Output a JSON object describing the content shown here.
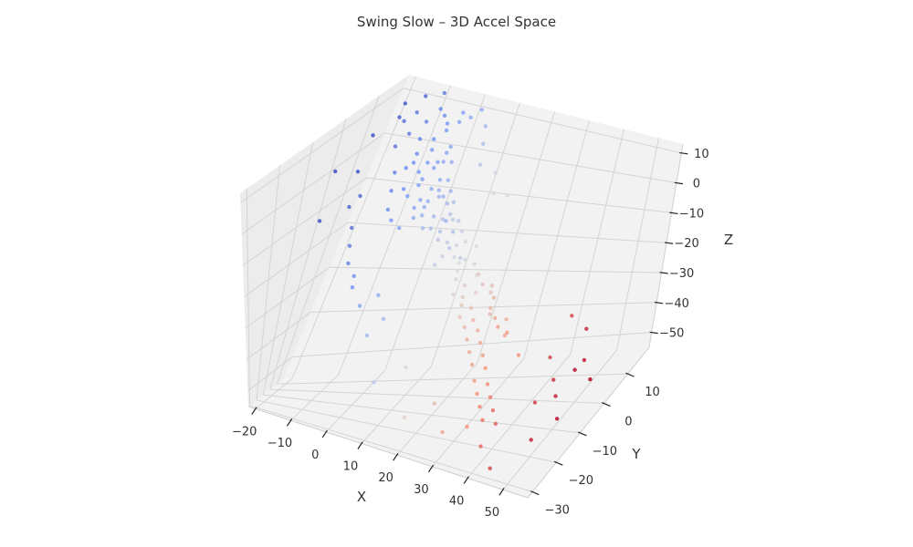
{
  "chart_data": {
    "type": "scatter",
    "projection": "3d",
    "title": "Swing Slow – 3D Accel Space",
    "xlabel": "X",
    "ylabel": "Y",
    "zlabel": "Z",
    "xlim": [
      -22,
      57
    ],
    "ylim": [
      -32,
      19
    ],
    "zlim": [
      -55,
      13
    ],
    "x_ticks": [
      -20,
      -10,
      0,
      10,
      20,
      30,
      40,
      50
    ],
    "y_ticks": [
      -30,
      -20,
      -10,
      0,
      10
    ],
    "z_ticks": [
      -50,
      -40,
      -30,
      -20,
      -10,
      0,
      10
    ],
    "x_tick_labels": [
      "−20",
      "−10",
      "0",
      "10",
      "20",
      "30",
      "40",
      "50"
    ],
    "y_tick_labels": [
      "−30",
      "−20",
      "−10",
      "0",
      "10"
    ],
    "z_tick_labels": [
      "−50",
      "−40",
      "−30",
      "−20",
      "−10",
      "0",
      "10"
    ],
    "grid": true,
    "colormap": "coolwarm",
    "color_by": "x",
    "pane_color": "#f2f2f2",
    "grid_color": "#d4d4d4",
    "points": [
      [
        -4,
        10,
        6
      ],
      [
        -2,
        11,
        8
      ],
      [
        0,
        12,
        10
      ],
      [
        -6,
        8,
        3
      ],
      [
        2,
        13,
        11
      ],
      [
        -3,
        9,
        4
      ],
      [
        1,
        10,
        5
      ],
      [
        -5,
        6,
        2
      ],
      [
        0,
        7,
        1
      ],
      [
        3,
        9,
        2
      ],
      [
        -1,
        5,
        -1
      ],
      [
        4,
        8,
        -2
      ],
      [
        -8,
        4,
        0
      ],
      [
        2,
        5,
        -3
      ],
      [
        -10,
        9,
        12
      ],
      [
        -9,
        7,
        8
      ],
      [
        -11,
        6,
        5
      ],
      [
        -7,
        3,
        -4
      ],
      [
        -12,
        8,
        10
      ],
      [
        -6,
        12,
        12
      ],
      [
        1,
        3,
        -5
      ],
      [
        3,
        2,
        -6
      ],
      [
        5,
        4,
        -4
      ],
      [
        6,
        2,
        -8
      ],
      [
        8,
        3,
        -9
      ],
      [
        4,
        0,
        -7
      ],
      [
        7,
        0,
        -10
      ],
      [
        9,
        1,
        -11
      ],
      [
        10,
        -1,
        -12
      ],
      [
        6,
        -2,
        -9
      ],
      [
        2,
        0,
        -8
      ],
      [
        11,
        2,
        -8
      ],
      [
        12,
        0,
        -13
      ],
      [
        0,
        -2,
        -10
      ],
      [
        -3,
        -1,
        -9
      ],
      [
        -5,
        0,
        -7
      ],
      [
        14,
        1,
        -14
      ],
      [
        13,
        -3,
        -15
      ],
      [
        15,
        -1,
        -16
      ],
      [
        16,
        0,
        -18
      ],
      [
        12,
        -4,
        -17
      ],
      [
        17,
        -2,
        -19
      ],
      [
        18,
        -4,
        -20
      ],
      [
        20,
        -3,
        -22
      ],
      [
        19,
        -6,
        -23
      ],
      [
        21,
        -5,
        -24
      ],
      [
        22,
        -7,
        -25
      ],
      [
        24,
        -6,
        -26
      ],
      [
        26,
        -8,
        -28
      ],
      [
        23,
        -9,
        -27
      ],
      [
        25,
        -10,
        -29
      ],
      [
        28,
        -9,
        -30
      ],
      [
        27,
        -12,
        -31
      ],
      [
        30,
        -11,
        -32
      ],
      [
        29,
        -14,
        -33
      ],
      [
        32,
        -13,
        -34
      ],
      [
        31,
        -16,
        -35
      ],
      [
        34,
        -15,
        -36
      ],
      [
        33,
        -18,
        -38
      ],
      [
        36,
        -17,
        -39
      ],
      [
        35,
        -20,
        -40
      ],
      [
        38,
        -19,
        -41
      ],
      [
        37,
        -22,
        -42
      ],
      [
        40,
        -21,
        -43
      ],
      [
        39,
        -24,
        -44
      ],
      [
        42,
        -23,
        -45
      ],
      [
        15,
        5,
        -20
      ],
      [
        18,
        7,
        -25
      ],
      [
        10,
        6,
        -18
      ],
      [
        20,
        4,
        -28
      ],
      [
        25,
        3,
        -33
      ],
      [
        30,
        2,
        -38
      ],
      [
        35,
        0,
        -42
      ],
      [
        22,
        8,
        -30
      ],
      [
        28,
        6,
        -36
      ],
      [
        12,
        9,
        -22
      ],
      [
        8,
        10,
        -16
      ],
      [
        5,
        11,
        -14
      ],
      [
        45,
        -5,
        -38
      ],
      [
        48,
        -8,
        -42
      ],
      [
        50,
        -10,
        -45
      ],
      [
        52,
        -6,
        -40
      ],
      [
        46,
        -12,
        -46
      ],
      [
        53,
        -14,
        -48
      ],
      [
        49,
        3,
        -35
      ],
      [
        51,
        0,
        -42
      ],
      [
        44,
        5,
        -33
      ],
      [
        54,
        -2,
        -46
      ],
      [
        5,
        -20,
        -30
      ],
      [
        10,
        -25,
        -40
      ],
      [
        15,
        -18,
        -38
      ],
      [
        20,
        -28,
        -46
      ],
      [
        25,
        -22,
        -44
      ],
      [
        30,
        -27,
        -48
      ],
      [
        35,
        -24,
        -47
      ],
      [
        40,
        -26,
        -50
      ],
      [
        45,
        -30,
        -52
      ],
      [
        50,
        -20,
        -50
      ],
      [
        0,
        -15,
        -25
      ],
      [
        -5,
        -10,
        -20
      ],
      [
        -10,
        -5,
        -15
      ],
      [
        -15,
        0,
        -8
      ],
      [
        -18,
        5,
        -2
      ],
      [
        -20,
        10,
        4
      ],
      [
        -16,
        12,
        8
      ],
      [
        -14,
        2,
        -6
      ],
      [
        -12,
        -2,
        -12
      ],
      [
        -8,
        -8,
        -18
      ],
      [
        -4,
        -12,
        -22
      ],
      [
        2,
        -10,
        -24
      ],
      [
        6,
        -14,
        -28
      ],
      [
        -19,
        -5,
        -10
      ],
      [
        -21,
        0,
        0
      ],
      [
        -17,
        14,
        10
      ],
      [
        -13,
        15,
        12
      ],
      [
        -9,
        16,
        13
      ],
      [
        3,
        15,
        12
      ],
      [
        6,
        14,
        9
      ],
      [
        8,
        12,
        6
      ],
      [
        10,
        10,
        2
      ],
      [
        14,
        11,
        0
      ],
      [
        16,
        9,
        -4
      ],
      [
        18,
        12,
        -6
      ],
      [
        -2,
        2,
        -4
      ],
      [
        1,
        1,
        -6
      ],
      [
        -1,
        4,
        -2
      ],
      [
        3,
        6,
        -1
      ],
      [
        0,
        8,
        2
      ],
      [
        -3,
        6,
        0
      ],
      [
        2,
        7,
        3
      ],
      [
        4,
        5,
        -3
      ],
      [
        -4,
        3,
        -3
      ],
      [
        1,
        9,
        4
      ],
      [
        -2,
        7,
        2
      ],
      [
        5,
        6,
        -5
      ],
      [
        7,
        5,
        -6
      ],
      [
        9,
        4,
        -8
      ],
      [
        6,
        7,
        -4
      ],
      [
        8,
        6,
        -6
      ],
      [
        11,
        5,
        -10
      ],
      [
        3,
        3,
        -5
      ],
      [
        -6,
        5,
        1
      ],
      [
        -7,
        9,
        6
      ],
      [
        -8,
        11,
        9
      ],
      [
        -5,
        13,
        10
      ],
      [
        -1,
        14,
        11
      ],
      [
        -3,
        12,
        9
      ],
      [
        13,
        4,
        -12
      ],
      [
        15,
        3,
        -14
      ],
      [
        17,
        5,
        -16
      ],
      [
        19,
        2,
        -19
      ],
      [
        21,
        1,
        -21
      ],
      [
        23,
        0,
        -23
      ],
      [
        24,
        3,
        -25
      ],
      [
        26,
        1,
        -27
      ],
      [
        27,
        -2,
        -28
      ],
      [
        29,
        -3,
        -30
      ],
      [
        31,
        -5,
        -31
      ],
      [
        33,
        -4,
        -33
      ]
    ]
  }
}
